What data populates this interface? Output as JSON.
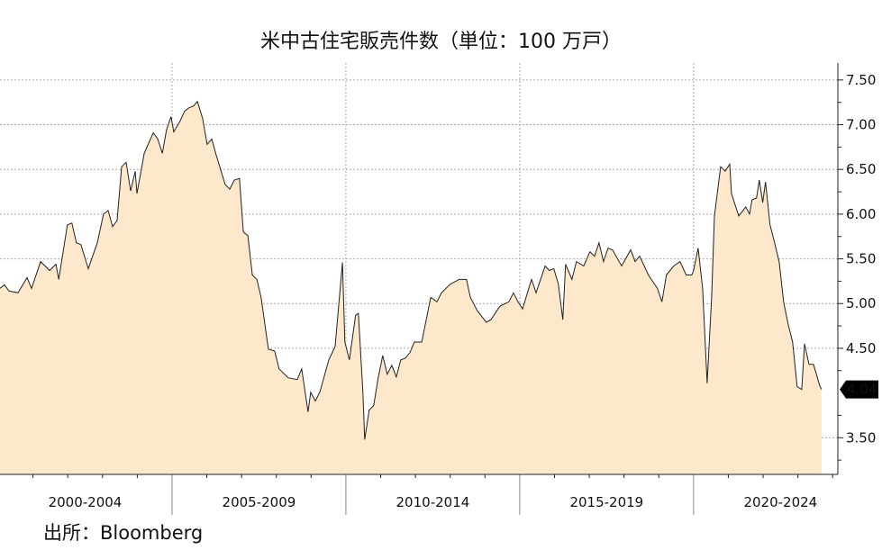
{
  "chart_data": {
    "type": "area",
    "title": "米中古住宅販売件数（単位：100 万戸）",
    "source": "出所：Bloomberg",
    "xlabel": "",
    "ylabel": "",
    "xlim": [
      2000,
      2024.15
    ],
    "ylim": [
      3.09,
      7.69
    ],
    "y_axis_position": "right",
    "yticks": [
      "7.50",
      "7.00",
      "6.50",
      "6.00",
      "5.50",
      "5.00",
      "4.50",
      "3.50"
    ],
    "xtick_labels": [
      "2000-2004",
      "2005-2009",
      "2010-2014",
      "2015-2019",
      "2020-2024"
    ],
    "grid": true,
    "last_value_label": "4.04",
    "colors": {
      "fill": "#fde8cc",
      "line": "#222222",
      "label_bg": "#000000"
    },
    "series": [
      {
        "points": [
          [
            2000.05,
            5.17
          ],
          [
            2000.18,
            5.21
          ],
          [
            2000.31,
            5.14
          ],
          [
            2000.57,
            5.12
          ],
          [
            2000.83,
            5.29
          ],
          [
            2000.96,
            5.17
          ],
          [
            2001.22,
            5.47
          ],
          [
            2001.48,
            5.37
          ],
          [
            2001.66,
            5.44
          ],
          [
            2001.74,
            5.27
          ],
          [
            2001.99,
            5.88
          ],
          [
            2002.12,
            5.9
          ],
          [
            2002.25,
            5.68
          ],
          [
            2002.38,
            5.66
          ],
          [
            2002.59,
            5.39
          ],
          [
            2002.85,
            5.68
          ],
          [
            2003.03,
            6.0
          ],
          [
            2003.16,
            6.04
          ],
          [
            2003.29,
            5.86
          ],
          [
            2003.42,
            5.93
          ],
          [
            2003.55,
            6.53
          ],
          [
            2003.68,
            6.58
          ],
          [
            2003.81,
            6.26
          ],
          [
            2003.94,
            6.48
          ],
          [
            2003.99,
            6.23
          ],
          [
            2004.2,
            6.68
          ],
          [
            2004.46,
            6.91
          ],
          [
            2004.59,
            6.84
          ],
          [
            2004.72,
            6.68
          ],
          [
            2004.84,
            6.94
          ],
          [
            2004.97,
            7.09
          ],
          [
            2005.05,
            6.92
          ],
          [
            2005.23,
            7.04
          ],
          [
            2005.36,
            7.15
          ],
          [
            2005.49,
            7.19
          ],
          [
            2005.62,
            7.21
          ],
          [
            2005.73,
            7.26
          ],
          [
            2005.88,
            7.07
          ],
          [
            2006.01,
            6.78
          ],
          [
            2006.14,
            6.84
          ],
          [
            2006.27,
            6.66
          ],
          [
            2006.53,
            6.33
          ],
          [
            2006.66,
            6.28
          ],
          [
            2006.79,
            6.38
          ],
          [
            2006.94,
            6.4
          ],
          [
            2007.05,
            5.8
          ],
          [
            2007.18,
            5.76
          ],
          [
            2007.31,
            5.32
          ],
          [
            2007.44,
            5.27
          ],
          [
            2007.56,
            5.07
          ],
          [
            2007.77,
            4.49
          ],
          [
            2007.95,
            4.47
          ],
          [
            2008.08,
            4.27
          ],
          [
            2008.34,
            4.17
          ],
          [
            2008.6,
            4.15
          ],
          [
            2008.73,
            4.27
          ],
          [
            2008.91,
            3.79
          ],
          [
            2008.99,
            4.01
          ],
          [
            2009.12,
            3.91
          ],
          [
            2009.25,
            4.01
          ],
          [
            2009.51,
            4.37
          ],
          [
            2009.69,
            4.52
          ],
          [
            2009.9,
            5.46
          ],
          [
            2009.97,
            4.57
          ],
          [
            2010.1,
            4.37
          ],
          [
            2010.28,
            4.87
          ],
          [
            2010.36,
            4.89
          ],
          [
            2010.49,
            4.01
          ],
          [
            2010.54,
            3.48
          ],
          [
            2010.67,
            3.81
          ],
          [
            2010.8,
            3.86
          ],
          [
            2010.93,
            4.17
          ],
          [
            2011.06,
            4.42
          ],
          [
            2011.19,
            4.21
          ],
          [
            2011.32,
            4.31
          ],
          [
            2011.45,
            4.18
          ],
          [
            2011.58,
            4.37
          ],
          [
            2011.71,
            4.39
          ],
          [
            2011.84,
            4.45
          ],
          [
            2011.97,
            4.57
          ],
          [
            2012.18,
            4.57
          ],
          [
            2012.44,
            5.07
          ],
          [
            2012.62,
            5.02
          ],
          [
            2012.75,
            5.12
          ],
          [
            2013.01,
            5.22
          ],
          [
            2013.26,
            5.27
          ],
          [
            2013.47,
            5.27
          ],
          [
            2013.58,
            5.07
          ],
          [
            2013.78,
            4.92
          ],
          [
            2014.04,
            4.79
          ],
          [
            2014.17,
            4.82
          ],
          [
            2014.43,
            4.97
          ],
          [
            2014.69,
            5.02
          ],
          [
            2014.82,
            5.12
          ],
          [
            2014.95,
            5.02
          ],
          [
            2015.08,
            4.94
          ],
          [
            2015.34,
            5.27
          ],
          [
            2015.47,
            5.12
          ],
          [
            2015.73,
            5.42
          ],
          [
            2015.85,
            5.37
          ],
          [
            2015.98,
            5.39
          ],
          [
            2016.11,
            5.22
          ],
          [
            2016.24,
            4.82
          ],
          [
            2016.32,
            5.44
          ],
          [
            2016.5,
            5.27
          ],
          [
            2016.63,
            5.47
          ],
          [
            2016.84,
            5.42
          ],
          [
            2017.02,
            5.58
          ],
          [
            2017.15,
            5.53
          ],
          [
            2017.28,
            5.68
          ],
          [
            2017.41,
            5.47
          ],
          [
            2017.54,
            5.62
          ],
          [
            2017.67,
            5.6
          ],
          [
            2017.93,
            5.42
          ],
          [
            2018.19,
            5.6
          ],
          [
            2018.32,
            5.47
          ],
          [
            2018.45,
            5.53
          ],
          [
            2018.7,
            5.32
          ],
          [
            2018.96,
            5.17
          ],
          [
            2019.09,
            5.02
          ],
          [
            2019.22,
            5.32
          ],
          [
            2019.43,
            5.42
          ],
          [
            2019.61,
            5.47
          ],
          [
            2019.79,
            5.32
          ],
          [
            2019.95,
            5.32
          ],
          [
            2020.0,
            5.37
          ],
          [
            2020.13,
            5.62
          ],
          [
            2020.26,
            5.17
          ],
          [
            2020.39,
            4.11
          ],
          [
            2020.52,
            5.07
          ],
          [
            2020.6,
            5.98
          ],
          [
            2020.78,
            6.53
          ],
          [
            2020.91,
            6.48
          ],
          [
            2021.04,
            6.56
          ],
          [
            2021.09,
            6.23
          ],
          [
            2021.3,
            5.98
          ],
          [
            2021.5,
            6.08
          ],
          [
            2021.61,
            6.0
          ],
          [
            2021.68,
            6.16
          ],
          [
            2021.81,
            6.18
          ],
          [
            2021.89,
            6.38
          ],
          [
            2021.99,
            6.13
          ],
          [
            2022.07,
            6.36
          ],
          [
            2022.2,
            5.88
          ],
          [
            2022.33,
            5.68
          ],
          [
            2022.46,
            5.47
          ],
          [
            2022.59,
            5.02
          ],
          [
            2022.72,
            4.77
          ],
          [
            2022.85,
            4.57
          ],
          [
            2022.98,
            4.07
          ],
          [
            2023.11,
            4.04
          ],
          [
            2023.19,
            4.55
          ],
          [
            2023.32,
            4.32
          ],
          [
            2023.45,
            4.32
          ],
          [
            2023.63,
            4.08
          ],
          [
            2023.68,
            4.04
          ]
        ]
      }
    ]
  }
}
